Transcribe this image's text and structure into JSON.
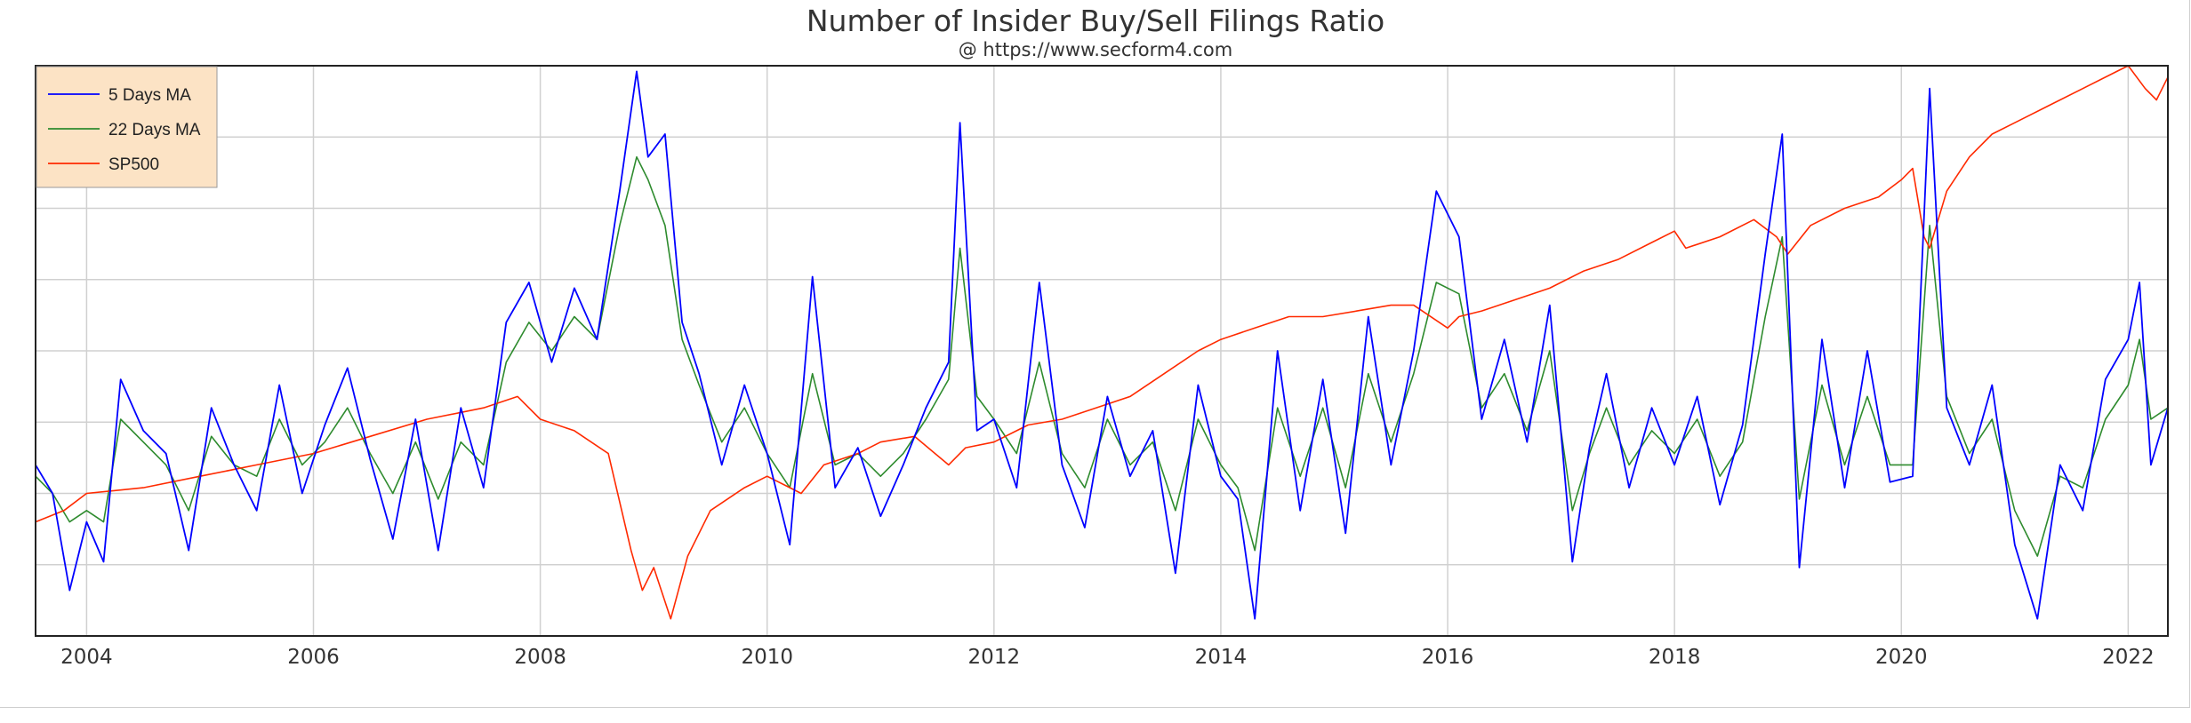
{
  "chart_data": {
    "type": "line",
    "title": "Number of Insider Buy/Sell Filings Ratio",
    "subtitle": "@ https://www.secform4.com",
    "x_tick_labels": [
      "2004",
      "2006",
      "2008",
      "2010",
      "2012",
      "2014",
      "2016",
      "2018",
      "2020",
      "2022"
    ],
    "xlim": [
      2003.55,
      2022.35
    ],
    "ylim": [
      0,
      1
    ],
    "grid": true,
    "y_tick_labels_shown": false,
    "legend_position": "top-left",
    "series": [
      {
        "name": "5 Days MA",
        "color": "#0000ff",
        "x": [
          2003.55,
          2003.7,
          2003.85,
          2004.0,
          2004.15,
          2004.3,
          2004.5,
          2004.7,
          2004.9,
          2005.1,
          2005.3,
          2005.5,
          2005.7,
          2005.9,
          2006.1,
          2006.3,
          2006.5,
          2006.7,
          2006.9,
          2007.1,
          2007.3,
          2007.5,
          2007.7,
          2007.9,
          2008.1,
          2008.3,
          2008.5,
          2008.7,
          2008.85,
          2008.95,
          2009.1,
          2009.25,
          2009.4,
          2009.6,
          2009.8,
          2010.0,
          2010.2,
          2010.4,
          2010.6,
          2010.8,
          2011.0,
          2011.2,
          2011.4,
          2011.6,
          2011.7,
          2011.85,
          2012.0,
          2012.2,
          2012.4,
          2012.6,
          2012.8,
          2013.0,
          2013.2,
          2013.4,
          2013.6,
          2013.8,
          2014.0,
          2014.15,
          2014.3,
          2014.5,
          2014.7,
          2014.9,
          2015.1,
          2015.3,
          2015.5,
          2015.7,
          2015.9,
          2016.1,
          2016.3,
          2016.5,
          2016.7,
          2016.9,
          2017.1,
          2017.25,
          2017.4,
          2017.6,
          2017.8,
          2018.0,
          2018.2,
          2018.4,
          2018.6,
          2018.8,
          2018.95,
          2019.1,
          2019.3,
          2019.5,
          2019.7,
          2019.9,
          2020.1,
          2020.25,
          2020.4,
          2020.6,
          2020.8,
          2021.0,
          2021.2,
          2021.4,
          2021.6,
          2021.8,
          2022.0,
          2022.1,
          2022.2,
          2022.35
        ],
        "y": [
          0.3,
          0.25,
          0.08,
          0.2,
          0.13,
          0.45,
          0.36,
          0.32,
          0.15,
          0.4,
          0.3,
          0.22,
          0.44,
          0.25,
          0.37,
          0.47,
          0.31,
          0.17,
          0.38,
          0.15,
          0.4,
          0.26,
          0.55,
          0.62,
          0.48,
          0.61,
          0.52,
          0.78,
          0.99,
          0.84,
          0.88,
          0.55,
          0.46,
          0.3,
          0.44,
          0.32,
          0.16,
          0.63,
          0.26,
          0.33,
          0.21,
          0.3,
          0.4,
          0.48,
          0.9,
          0.36,
          0.38,
          0.26,
          0.62,
          0.3,
          0.19,
          0.42,
          0.28,
          0.36,
          0.11,
          0.44,
          0.28,
          0.24,
          0.03,
          0.5,
          0.22,
          0.45,
          0.18,
          0.56,
          0.3,
          0.5,
          0.78,
          0.7,
          0.38,
          0.52,
          0.34,
          0.58,
          0.13,
          0.33,
          0.46,
          0.26,
          0.4,
          0.3,
          0.42,
          0.23,
          0.37,
          0.67,
          0.88,
          0.12,
          0.52,
          0.26,
          0.5,
          0.27,
          0.28,
          0.96,
          0.4,
          0.3,
          0.44,
          0.16,
          0.03,
          0.3,
          0.22,
          0.45,
          0.52,
          0.62,
          0.3,
          0.4
        ]
      },
      {
        "name": "22 Days MA",
        "color": "#2e8b2e",
        "x": [
          2003.55,
          2003.7,
          2003.85,
          2004.0,
          2004.15,
          2004.3,
          2004.5,
          2004.7,
          2004.9,
          2005.1,
          2005.3,
          2005.5,
          2005.7,
          2005.9,
          2006.1,
          2006.3,
          2006.5,
          2006.7,
          2006.9,
          2007.1,
          2007.3,
          2007.5,
          2007.7,
          2007.9,
          2008.1,
          2008.3,
          2008.5,
          2008.7,
          2008.85,
          2008.95,
          2009.1,
          2009.25,
          2009.4,
          2009.6,
          2009.8,
          2010.0,
          2010.2,
          2010.4,
          2010.6,
          2010.8,
          2011.0,
          2011.2,
          2011.4,
          2011.6,
          2011.7,
          2011.85,
          2012.0,
          2012.2,
          2012.4,
          2012.6,
          2012.8,
          2013.0,
          2013.2,
          2013.4,
          2013.6,
          2013.8,
          2014.0,
          2014.15,
          2014.3,
          2014.5,
          2014.7,
          2014.9,
          2015.1,
          2015.3,
          2015.5,
          2015.7,
          2015.9,
          2016.1,
          2016.3,
          2016.5,
          2016.7,
          2016.9,
          2017.1,
          2017.25,
          2017.4,
          2017.6,
          2017.8,
          2018.0,
          2018.2,
          2018.4,
          2018.6,
          2018.8,
          2018.95,
          2019.1,
          2019.3,
          2019.5,
          2019.7,
          2019.9,
          2020.1,
          2020.25,
          2020.4,
          2020.6,
          2020.8,
          2021.0,
          2021.2,
          2021.4,
          2021.6,
          2021.8,
          2022.0,
          2022.1,
          2022.2,
          2022.35
        ],
        "y": [
          0.28,
          0.25,
          0.2,
          0.22,
          0.2,
          0.38,
          0.34,
          0.3,
          0.22,
          0.35,
          0.3,
          0.28,
          0.38,
          0.3,
          0.34,
          0.4,
          0.32,
          0.25,
          0.34,
          0.24,
          0.34,
          0.3,
          0.48,
          0.55,
          0.5,
          0.56,
          0.52,
          0.72,
          0.84,
          0.8,
          0.72,
          0.52,
          0.44,
          0.34,
          0.4,
          0.32,
          0.26,
          0.46,
          0.3,
          0.32,
          0.28,
          0.32,
          0.38,
          0.45,
          0.68,
          0.42,
          0.38,
          0.32,
          0.48,
          0.32,
          0.26,
          0.38,
          0.3,
          0.34,
          0.22,
          0.38,
          0.3,
          0.26,
          0.15,
          0.4,
          0.28,
          0.4,
          0.26,
          0.46,
          0.34,
          0.46,
          0.62,
          0.6,
          0.4,
          0.46,
          0.36,
          0.5,
          0.22,
          0.32,
          0.4,
          0.3,
          0.36,
          0.32,
          0.38,
          0.28,
          0.34,
          0.56,
          0.7,
          0.24,
          0.44,
          0.3,
          0.42,
          0.3,
          0.3,
          0.72,
          0.42,
          0.32,
          0.38,
          0.22,
          0.14,
          0.28,
          0.26,
          0.38,
          0.44,
          0.52,
          0.38,
          0.4
        ]
      },
      {
        "name": "SP500",
        "color": "#ff2a00",
        "x": [
          2003.55,
          2003.8,
          2004.0,
          2004.5,
          2005.0,
          2005.5,
          2006.0,
          2006.5,
          2007.0,
          2007.5,
          2007.8,
          2008.0,
          2008.3,
          2008.6,
          2008.8,
          2008.9,
          2009.0,
          2009.15,
          2009.3,
          2009.5,
          2009.8,
          2010.0,
          2010.3,
          2010.5,
          2010.8,
          2011.0,
          2011.3,
          2011.6,
          2011.75,
          2012.0,
          2012.3,
          2012.6,
          2012.9,
          2013.2,
          2013.5,
          2013.8,
          2014.0,
          2014.3,
          2014.6,
          2014.9,
          2015.2,
          2015.5,
          2015.7,
          2016.0,
          2016.1,
          2016.3,
          2016.6,
          2016.9,
          2017.2,
          2017.5,
          2017.8,
          2018.0,
          2018.1,
          2018.4,
          2018.7,
          2018.9,
          2019.0,
          2019.2,
          2019.5,
          2019.8,
          2020.0,
          2020.1,
          2020.2,
          2020.25,
          2020.4,
          2020.6,
          2020.8,
          2021.0,
          2021.3,
          2021.6,
          2021.9,
          2022.0,
          2022.15,
          2022.25,
          2022.35
        ],
        "y": [
          0.2,
          0.22,
          0.25,
          0.26,
          0.28,
          0.3,
          0.32,
          0.35,
          0.38,
          0.4,
          0.42,
          0.38,
          0.36,
          0.32,
          0.15,
          0.08,
          0.12,
          0.03,
          0.14,
          0.22,
          0.26,
          0.28,
          0.25,
          0.3,
          0.32,
          0.34,
          0.35,
          0.3,
          0.33,
          0.34,
          0.37,
          0.38,
          0.4,
          0.42,
          0.46,
          0.5,
          0.52,
          0.54,
          0.56,
          0.56,
          0.57,
          0.58,
          0.58,
          0.54,
          0.56,
          0.57,
          0.59,
          0.61,
          0.64,
          0.66,
          0.69,
          0.71,
          0.68,
          0.7,
          0.73,
          0.7,
          0.67,
          0.72,
          0.75,
          0.77,
          0.8,
          0.82,
          0.7,
          0.68,
          0.78,
          0.84,
          0.88,
          0.9,
          0.93,
          0.96,
          0.99,
          1.0,
          0.96,
          0.94,
          0.98
        ]
      }
    ]
  }
}
